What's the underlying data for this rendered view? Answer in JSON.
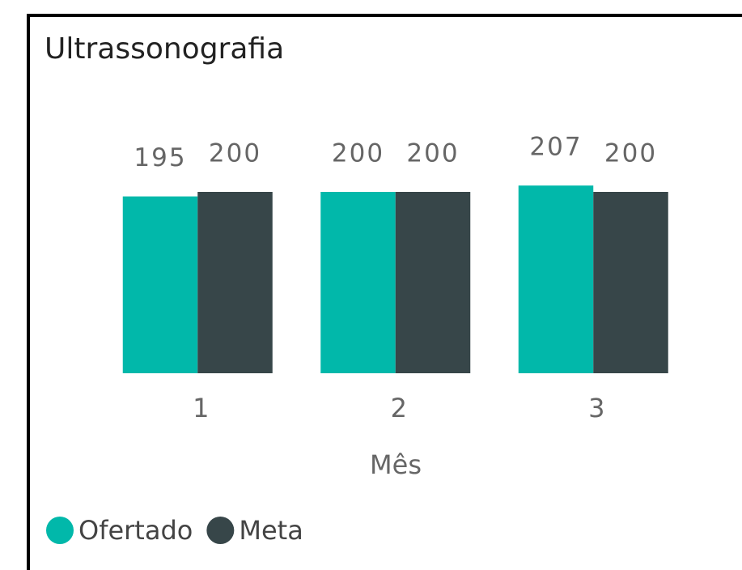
{
  "chart_data": {
    "type": "bar",
    "title": "Ultrassonografia",
    "categories": [
      "1",
      "2",
      "3"
    ],
    "series": [
      {
        "name": "Ofertado",
        "color": "#01B8AA",
        "values": [
          195,
          200,
          207
        ]
      },
      {
        "name": "Meta",
        "color": "#374649",
        "values": [
          200,
          200,
          200
        ]
      }
    ],
    "xlabel": "Mês",
    "legend": "bottom-left",
    "grid": false
  }
}
